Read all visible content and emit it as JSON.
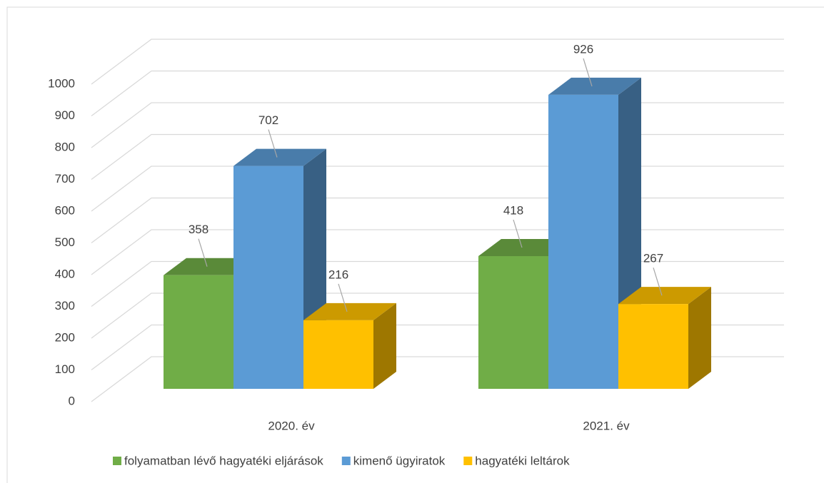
{
  "chart_data": {
    "type": "bar3d",
    "categories": [
      "2020. év",
      "2021. év"
    ],
    "series": [
      {
        "name": "folyamatban lévő hagyatéki eljárások",
        "color": "#70ad47",
        "values": [
          358,
          418
        ]
      },
      {
        "name": "kimenő ügyiratok",
        "color": "#5b9bd5",
        "values": [
          702,
          926
        ]
      },
      {
        "name": "hagyatéki leltárok",
        "color": "#ffc000",
        "values": [
          216,
          267
        ]
      }
    ],
    "ylim": [
      0,
      1000
    ],
    "yticks": [
      0,
      100,
      200,
      300,
      400,
      500,
      600,
      700,
      800,
      900,
      1000
    ],
    "grid": true,
    "legend": "bottom"
  }
}
